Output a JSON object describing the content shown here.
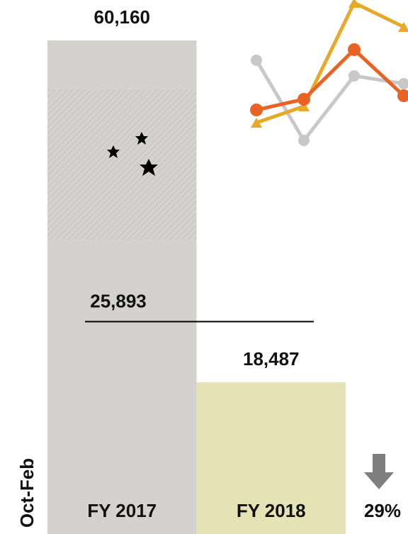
{
  "chart_data": {
    "type": "bar",
    "categories": [
      "FY 2017",
      "FY 2018"
    ],
    "values": [
      60160,
      18487
    ],
    "value_labels": [
      "60,160",
      "18,487"
    ],
    "colors": [
      "#d3d2ce",
      "#e5e2b6"
    ],
    "ylim": [
      0,
      60160
    ],
    "reference_line": {
      "value": 25893,
      "label": "25,893"
    },
    "side_label": "Oct-Feb",
    "change_label": "29%"
  }
}
